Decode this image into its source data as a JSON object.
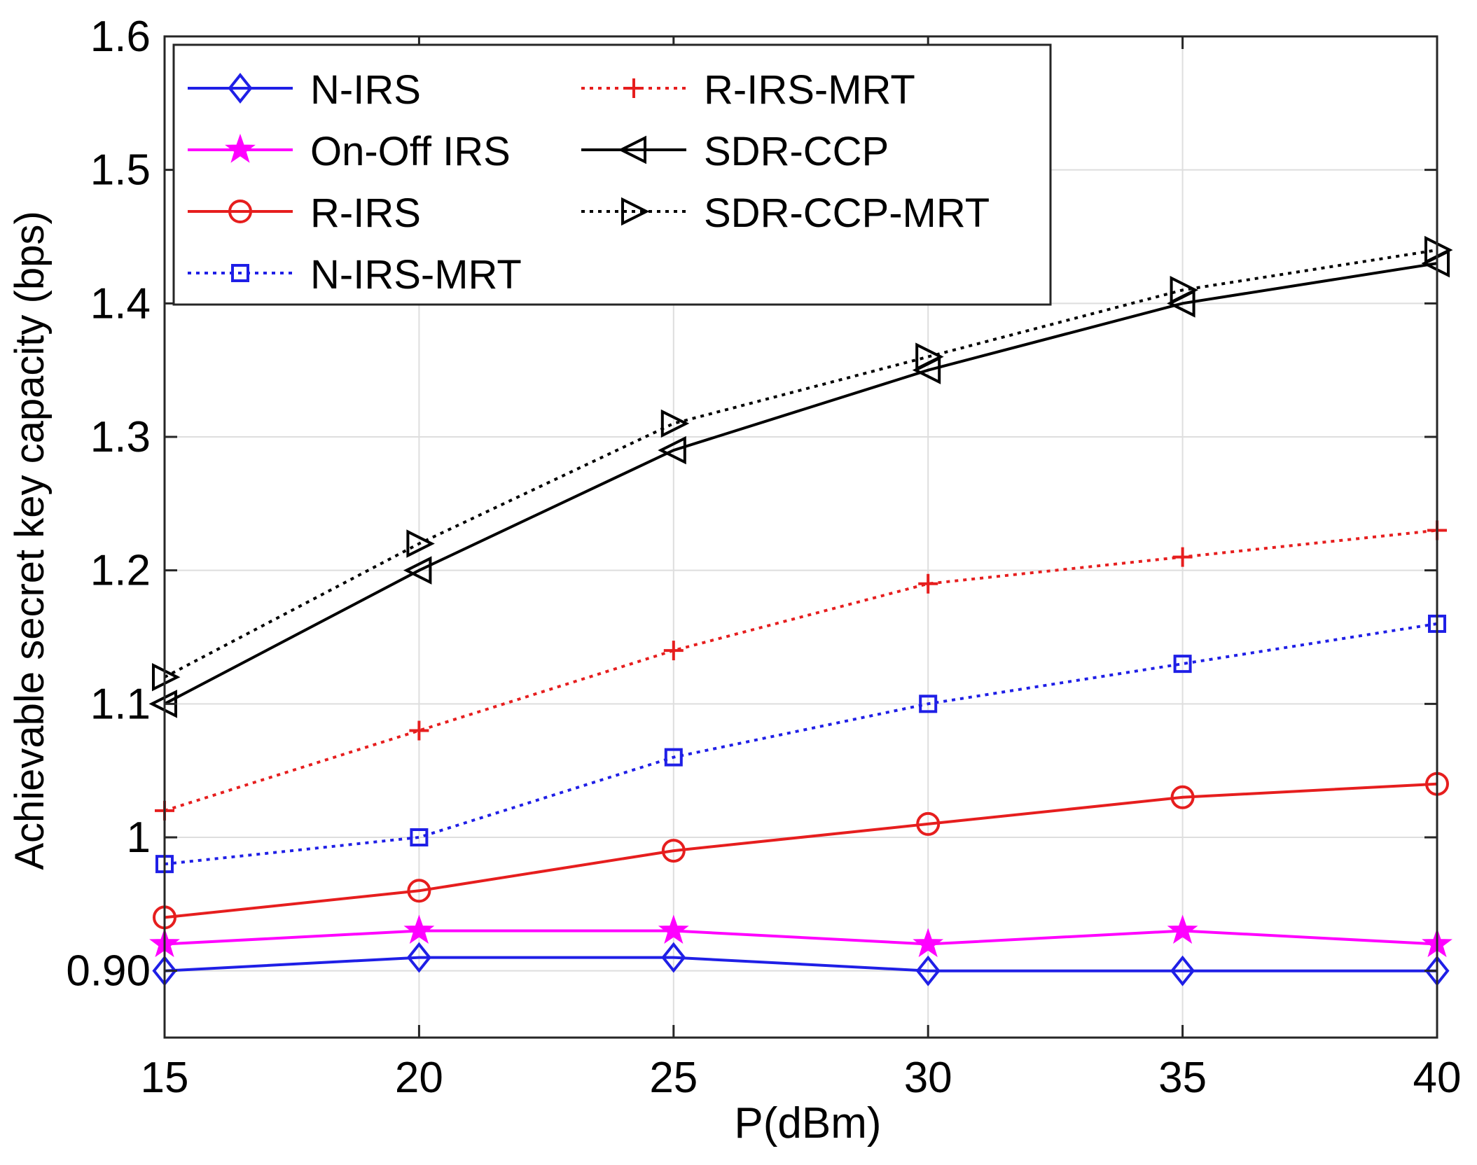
{
  "chart_data": {
    "type": "line",
    "title": "",
    "xlabel": "P(dBm)",
    "ylabel": "Achievable secret key capacity (bps)",
    "x": [
      15,
      20,
      25,
      30,
      35,
      40
    ],
    "xlim": [
      15,
      40
    ],
    "ylim": [
      0.85,
      1.6
    ],
    "xticks": [
      15,
      20,
      25,
      30,
      35,
      40
    ],
    "xtick_labels": [
      "15",
      "20",
      "25",
      "30",
      "35",
      "40"
    ],
    "yticks": [
      0.9,
      1.0,
      1.1,
      1.2,
      1.3,
      1.4,
      1.5,
      1.6
    ],
    "ytick_labels": [
      "0.90",
      "1",
      "1.1",
      "1.2",
      "1.3",
      "1.4",
      "1.5",
      "1.6"
    ],
    "grid": true,
    "legend_position": "top-left",
    "series": [
      {
        "name": "N-IRS",
        "color": "#1f1fe6",
        "line": "solid",
        "marker": "diamond",
        "values": [
          0.9,
          0.91,
          0.91,
          0.9,
          0.9,
          0.9
        ]
      },
      {
        "name": "On-Off IRS",
        "color": "#ff00ff",
        "line": "solid",
        "marker": "star",
        "values": [
          0.92,
          0.93,
          0.93,
          0.92,
          0.93,
          0.92
        ]
      },
      {
        "name": "R-IRS",
        "color": "#e61e1e",
        "line": "solid",
        "marker": "circle",
        "values": [
          0.94,
          0.96,
          0.99,
          1.01,
          1.03,
          1.04
        ]
      },
      {
        "name": "N-IRS-MRT",
        "color": "#1f1fe6",
        "line": "dotted",
        "marker": "square",
        "values": [
          0.98,
          1.0,
          1.06,
          1.1,
          1.13,
          1.16
        ]
      },
      {
        "name": "R-IRS-MRT",
        "color": "#e61e1e",
        "line": "dotted",
        "marker": "plus",
        "values": [
          1.02,
          1.08,
          1.14,
          1.19,
          1.21,
          1.23
        ]
      },
      {
        "name": "SDR-CCP",
        "color": "#000000",
        "line": "solid",
        "marker": "triangle-left",
        "values": [
          1.1,
          1.2,
          1.29,
          1.35,
          1.4,
          1.43
        ]
      },
      {
        "name": "SDR-CCP-MRT",
        "color": "#000000",
        "line": "dotted",
        "marker": "triangle-right",
        "values": [
          1.12,
          1.22,
          1.31,
          1.36,
          1.41,
          1.44
        ]
      }
    ]
  }
}
